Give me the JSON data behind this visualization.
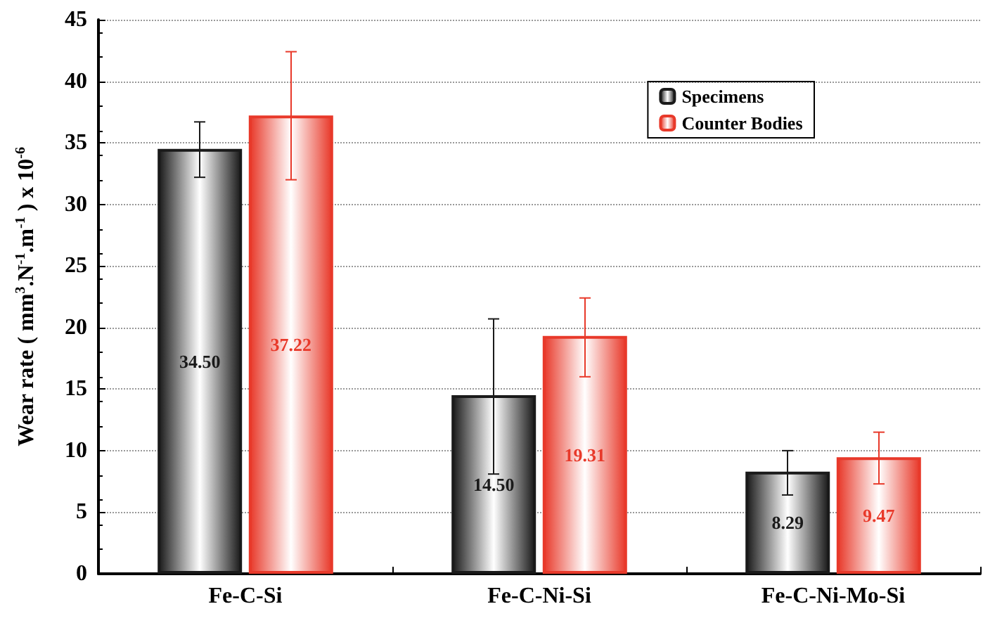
{
  "chart_data": {
    "type": "bar",
    "ylabel": "Wear rate ( mm$^{3}$.N$^{-1}$.m$^{-1}$ ) x 10$^{-6}$",
    "categories": [
      "Fe-C-Si",
      "Fe-C-Ni-Si",
      "Fe-C-Ni-Mo-Si"
    ],
    "series": [
      {
        "name": "Specimens",
        "color": "#1a1a1a",
        "values": [
          34.5,
          14.5,
          8.29
        ],
        "value_labels": [
          "34.50",
          "14.50",
          "8.29"
        ],
        "errors": [
          [
            32.2,
            36.7
          ],
          [
            8.1,
            20.7
          ],
          [
            6.4,
            10.0
          ]
        ]
      },
      {
        "name": "Counter Bodies",
        "color": "#e8392a",
        "values": [
          37.22,
          19.31,
          9.47
        ],
        "value_labels": [
          "37.22",
          "19.31",
          "9.47"
        ],
        "errors": [
          [
            32.0,
            42.4
          ],
          [
            16.0,
            22.4
          ],
          [
            7.3,
            11.5
          ]
        ]
      }
    ],
    "ylim": [
      0,
      45
    ],
    "yticks": [
      0,
      5,
      10,
      15,
      20,
      25,
      30,
      35,
      40,
      45
    ],
    "grid": "y",
    "legend": "top right"
  }
}
